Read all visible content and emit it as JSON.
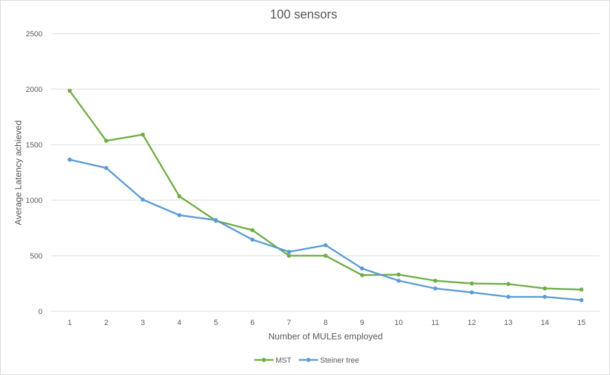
{
  "chart_data": {
    "type": "line",
    "title": "100 sensors",
    "xlabel": "Number of MULEs employed",
    "ylabel": "Average Latency achieved",
    "categories": [
      "1",
      "2",
      "3",
      "4",
      "5",
      "6",
      "7",
      "8",
      "9",
      "10",
      "11",
      "12",
      "13",
      "14",
      "15"
    ],
    "ylim": [
      0,
      2500
    ],
    "yticks": [
      0,
      500,
      1000,
      1500,
      2000,
      2500
    ],
    "grid": true,
    "legend_position": "bottom",
    "series": [
      {
        "name": "MST",
        "color": "#70ad47",
        "values": [
          1985,
          1535,
          1590,
          1035,
          815,
          730,
          500,
          500,
          325,
          330,
          275,
          250,
          245,
          205,
          195
        ]
      },
      {
        "name": "Steiner tree",
        "color": "#5b9bd5",
        "values": [
          1365,
          1290,
          1005,
          865,
          820,
          645,
          535,
          595,
          385,
          275,
          205,
          170,
          130,
          130,
          100
        ]
      }
    ]
  }
}
